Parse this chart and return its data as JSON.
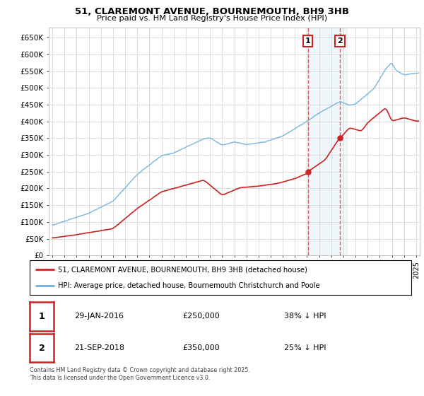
{
  "title": "51, CLAREMONT AVENUE, BOURNEMOUTH, BH9 3HB",
  "subtitle": "Price paid vs. HM Land Registry's House Price Index (HPI)",
  "ylabel_ticks": [
    "£0",
    "£50K",
    "£100K",
    "£150K",
    "£200K",
    "£250K",
    "£300K",
    "£350K",
    "£400K",
    "£450K",
    "£500K",
    "£550K",
    "£600K",
    "£650K"
  ],
  "ytick_vals": [
    0,
    50000,
    100000,
    150000,
    200000,
    250000,
    300000,
    350000,
    400000,
    450000,
    500000,
    550000,
    600000,
    650000
  ],
  "ylim": [
    0,
    680000
  ],
  "xlim_start": 1994.7,
  "xlim_end": 2025.3,
  "hpi_color": "#6ab0d8",
  "price_color": "#cc2222",
  "sale1_date": 2016.07,
  "sale1_price": 250000,
  "sale2_date": 2018.72,
  "sale2_price": 350000,
  "legend1_label": "51, CLAREMONT AVENUE, BOURNEMOUTH, BH9 3HB (detached house)",
  "legend2_label": "HPI: Average price, detached house, Bournemouth Christchurch and Poole",
  "annotation_text": "Contains HM Land Registry data © Crown copyright and database right 2025.\nThis data is licensed under the Open Government Licence v3.0.",
  "table_rows": [
    {
      "num": "1",
      "date": "29-JAN-2016",
      "price": "£250,000",
      "hpi": "38% ↓ HPI"
    },
    {
      "num": "2",
      "date": "21-SEP-2018",
      "price": "£350,000",
      "hpi": "25% ↓ HPI"
    }
  ],
  "background_color": "#ffffff",
  "grid_color": "#d0d0d0",
  "shade_start": 2016.07,
  "shade_end": 2019.3
}
